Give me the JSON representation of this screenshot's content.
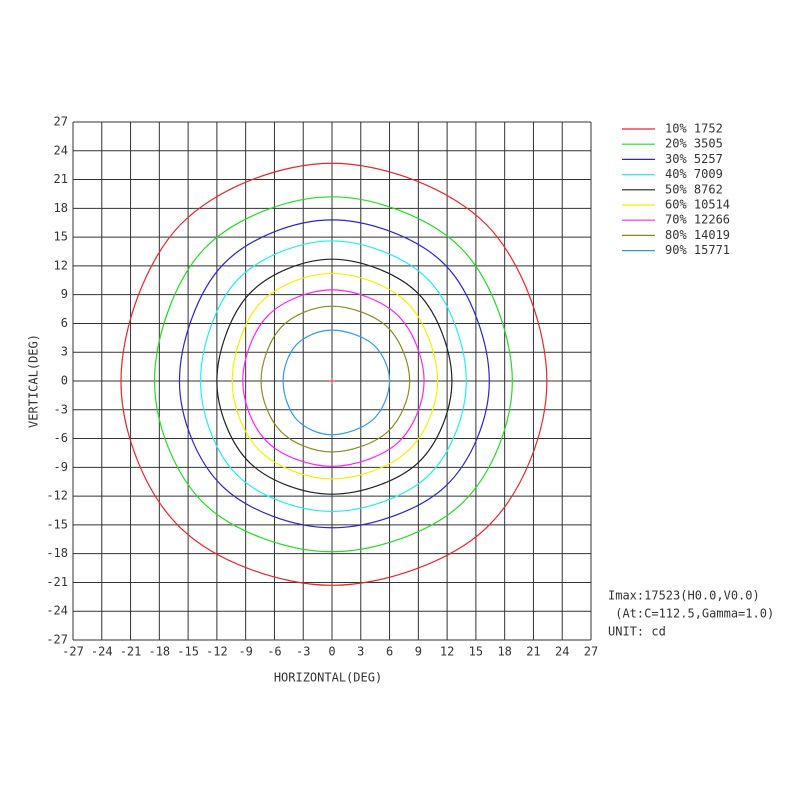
{
  "chart_data": {
    "type": "contour",
    "x_label": "HORIZONTAL(DEG)",
    "y_label": "VERTICAL(DEG)",
    "xlim": [
      -27,
      27
    ],
    "ylim": [
      -27,
      27
    ],
    "xticks": [
      -27,
      -24,
      -21,
      -18,
      -15,
      -12,
      -9,
      -6,
      -3,
      0,
      3,
      6,
      9,
      12,
      15,
      18,
      21,
      24,
      27
    ],
    "yticks": [
      -27,
      -24,
      -21,
      -18,
      -15,
      -12,
      -9,
      -6,
      -3,
      0,
      3,
      6,
      9,
      12,
      15,
      18,
      21,
      24,
      27
    ],
    "grid": true,
    "series": [
      {
        "name": "10% 1752",
        "color": "#e8262a",
        "x": [
          0,
          16.1,
          22.4,
          16.1,
          0,
          -15.8,
          -22.0,
          -15.8
        ],
        "y": [
          22.7,
          16.3,
          0,
          -15.3,
          -21.3,
          -15.3,
          0,
          16.3
        ]
      },
      {
        "name": "20% 3505",
        "color": "#22dd22",
        "x": [
          0,
          13.5,
          18.8,
          13.5,
          0,
          -13.3,
          -18.5,
          -13.3
        ],
        "y": [
          19.2,
          13.8,
          0,
          -12.8,
          -17.8,
          -12.8,
          0,
          13.8
        ]
      },
      {
        "name": "30% 5257",
        "color": "#2626d0",
        "x": [
          0,
          11.8,
          16.4,
          11.8,
          0,
          -11.4,
          -15.9,
          -11.4
        ],
        "y": [
          16.8,
          12.1,
          0,
          -11.0,
          -15.3,
          -11.0,
          0,
          12.1
        ]
      },
      {
        "name": "40% 7009",
        "color": "#22eeee",
        "x": [
          0,
          10.1,
          14.0,
          10.1,
          0,
          -9.9,
          -13.7,
          -9.9
        ],
        "y": [
          14.6,
          10.5,
          0,
          -9.8,
          -13.6,
          -9.8,
          0,
          10.5
        ]
      },
      {
        "name": "50% 8762",
        "color": "#222222",
        "x": [
          0,
          9.0,
          12.5,
          9.0,
          0,
          -8.6,
          -12.0,
          -8.6
        ],
        "y": [
          12.7,
          9.1,
          0,
          -8.5,
          -11.8,
          -8.5,
          0,
          9.1
        ]
      },
      {
        "name": "60% 10514",
        "color": "#f2f200",
        "x": [
          0,
          7.9,
          11.0,
          7.9,
          0,
          -7.5,
          -10.4,
          -7.5
        ],
        "y": [
          11.2,
          8.1,
          0,
          -7.3,
          -10.2,
          -7.3,
          0,
          8.1
        ]
      },
      {
        "name": "70% 12266",
        "color": "#ff22ff",
        "x": [
          0,
          6.9,
          9.6,
          6.9,
          0,
          -6.7,
          -9.3,
          -6.7
        ],
        "y": [
          9.5,
          6.8,
          0,
          -6.4,
          -8.9,
          -6.4,
          0,
          6.8
        ]
      },
      {
        "name": "80% 14019",
        "color": "#8b8b22",
        "x": [
          0,
          5.8,
          8.1,
          5.8,
          0,
          -5.3,
          -7.4,
          -5.3
        ],
        "y": [
          7.8,
          5.6,
          0,
          -5.3,
          -7.4,
          -5.3,
          0,
          5.6
        ]
      },
      {
        "name": "90% 15771",
        "color": "#3399ee",
        "x": [
          0,
          4.3,
          6.0,
          4.3,
          0,
          -3.7,
          -5.1,
          -3.7
        ],
        "y": [
          5.3,
          3.8,
          0,
          -4.0,
          -5.6,
          -4.0,
          0,
          3.8
        ]
      }
    ],
    "annotations": [
      "Imax:17523(H0.0,V0.0)",
      " (At:C=112.5,Gamma=1.0)",
      "UNIT: cd"
    ]
  }
}
